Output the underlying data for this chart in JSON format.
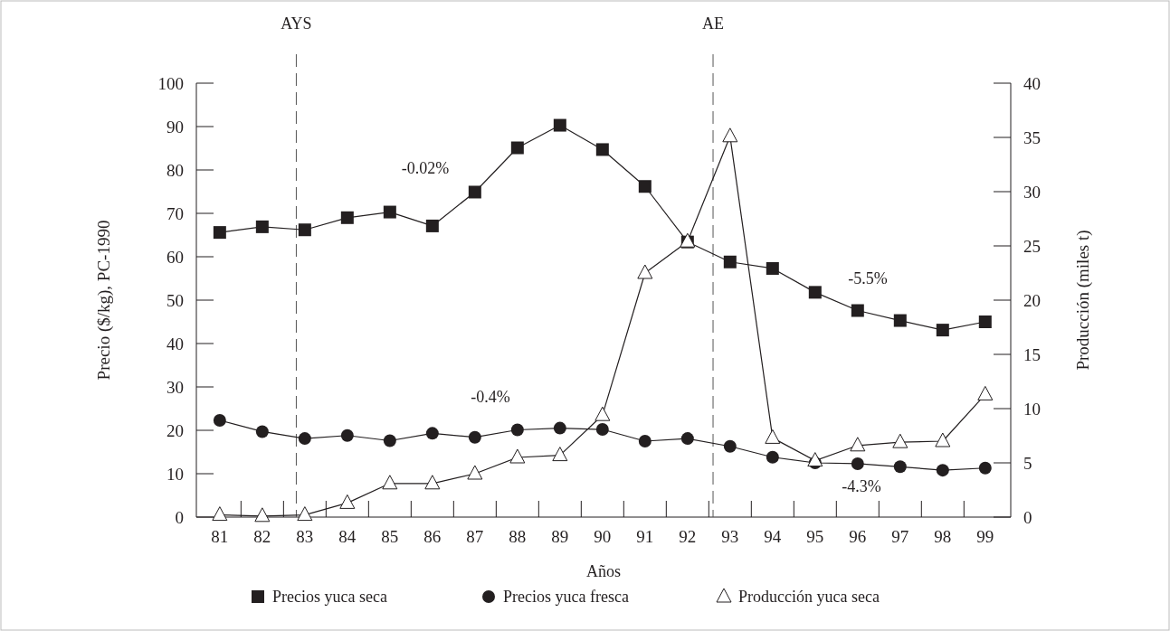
{
  "chart_data": {
    "type": "line",
    "xlabel": "Años",
    "ylabel": "Precio ($/kg), PC-1990",
    "y2label": "Producción (miles t)",
    "x": [
      81,
      82,
      83,
      84,
      85,
      86,
      87,
      88,
      89,
      90,
      91,
      92,
      93,
      94,
      95,
      96,
      97,
      98,
      99
    ],
    "xlim": [
      80.45,
      99.6
    ],
    "xticks": [
      81,
      82,
      83,
      84,
      85,
      86,
      87,
      88,
      89,
      90,
      91,
      92,
      93,
      94,
      95,
      96,
      97,
      98,
      99
    ],
    "ylim": [
      0,
      100
    ],
    "yticks": [
      0,
      10,
      20,
      30,
      40,
      50,
      60,
      70,
      80,
      90,
      100
    ],
    "y2lim": [
      0,
      40
    ],
    "y2ticks": [
      0,
      5,
      10,
      15,
      20,
      25,
      30,
      35,
      40
    ],
    "legend": "bottom",
    "grid": false,
    "series": [
      {
        "name": "Precios yuca seca",
        "color": "#231f20",
        "marker": "square",
        "values": [
          65.6,
          66.9,
          66.2,
          69.0,
          70.3,
          67.1,
          74.9,
          85.1,
          90.3,
          84.7,
          76.2,
          63.4,
          58.8,
          57.3,
          51.8,
          47.6,
          45.3,
          43.1,
          45.0
        ]
      },
      {
        "name": "Precios yuca fresca",
        "color": "#231f20",
        "marker": "circle",
        "values": [
          22.3,
          19.7,
          18.1,
          18.8,
          17.6,
          19.3,
          18.4,
          20.1,
          20.5,
          20.2,
          17.5,
          18.1,
          16.3,
          13.8,
          12.5,
          12.3,
          11.6,
          10.8,
          11.3
        ]
      },
      {
        "name": "Producción yuca seca",
        "color": "#231f20",
        "marker": "triangle",
        "axis": "y2",
        "values": [
          0.2,
          0.1,
          0.2,
          1.3,
          3.1,
          3.1,
          4.0,
          5.5,
          5.7,
          9.4,
          22.5,
          25.4,
          35.1,
          7.3,
          5.2,
          6.6,
          6.9,
          7.0,
          11.3
        ]
      }
    ],
    "ref_lines": [
      {
        "axis": "x",
        "value": 82.8,
        "label": "AYS",
        "line_style": "dashed",
        "color": "#555555"
      },
      {
        "axis": "x",
        "value": 92.6,
        "label": "AE",
        "line_style": "dashed",
        "color": "#555555"
      }
    ],
    "annotations": [
      "-0.02%",
      "-0.4%",
      "-5.5%",
      "-4.3%"
    ]
  }
}
